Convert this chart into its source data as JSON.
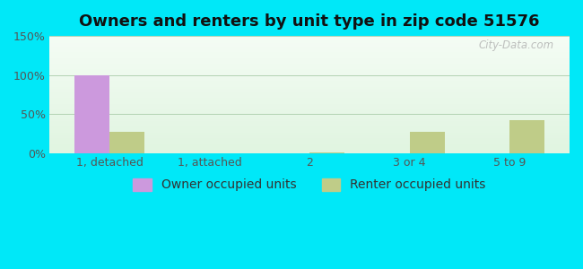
{
  "title": "Owners and renters by unit type in zip code 51576",
  "categories": [
    "1, detached",
    "1, attached",
    "2",
    "3 or 4",
    "5 to 9"
  ],
  "owner_values": [
    100,
    0,
    0,
    0,
    0
  ],
  "renter_values": [
    28,
    0,
    1,
    27,
    42
  ],
  "owner_color": "#cc99dd",
  "renter_color": "#bfcc88",
  "ylim": [
    0,
    150
  ],
  "yticks": [
    0,
    50,
    100,
    150
  ],
  "ytick_labels": [
    "0%",
    "50%",
    "100%",
    "150%"
  ],
  "bar_width": 0.35,
  "outer_bg": "#00e8f8",
  "title_fontsize": 13,
  "legend_fontsize": 10,
  "tick_fontsize": 9,
  "watermark": "City-Data.com"
}
